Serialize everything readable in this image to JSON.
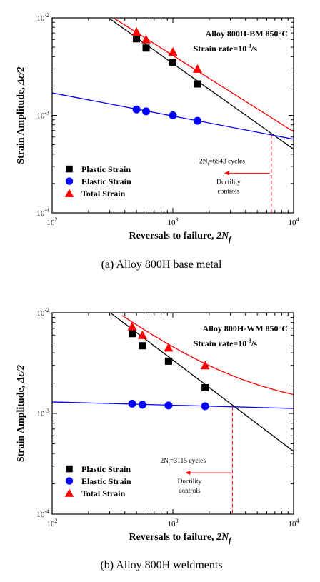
{
  "chart_data": [
    {
      "type": "scatter",
      "xlabel": "Reversals to failure, ",
      "xlabel_var": "2N",
      "xlabel_sub": "f",
      "ylabel": "Strain Amplitude, ",
      "ylabel_var": "Δε/2",
      "xscale": "log",
      "yscale": "log",
      "xlim": [
        100,
        10000
      ],
      "ylim": [
        0.0001,
        0.01
      ],
      "caption": "(a)  Alloy  800H  base  metal",
      "annotation_title": "Alloy 800H-BM 850°C",
      "annotation_rate_prefix": "Strain rate=10",
      "annotation_rate_exp": "-3",
      "annotation_rate_suffix": "/s",
      "cycles_text_prefix": "2N",
      "cycles_text_sub": "t",
      "cycles_text_suffix": "=6543 cycles",
      "ductility_line1": "Ductility",
      "ductility_line2": "controls",
      "transition_x": 6543,
      "legend_position": "lower-left",
      "x_ticks": [
        {
          "value": 100,
          "base": "10",
          "exp": "2"
        },
        {
          "value": 1000,
          "base": "10",
          "exp": "3"
        },
        {
          "value": 10000,
          "base": "10",
          "exp": "4"
        }
      ],
      "y_ticks": [
        {
          "value": 0.0001,
          "base": "10",
          "exp": "-4"
        },
        {
          "value": 0.001,
          "base": "10",
          "exp": "-3"
        },
        {
          "value": 0.01,
          "base": "10",
          "exp": "-2"
        }
      ],
      "series": [
        {
          "name": "Plastic Strain",
          "marker": "square",
          "color": "#000000",
          "x": [
            500,
            600,
            1000,
            1600
          ],
          "y": [
            0.0061,
            0.0049,
            0.0035,
            0.0021
          ],
          "fit": {
            "type": "powerlaw",
            "x": [
              300,
              10000
            ],
            "y": [
              0.0098,
              0.00045
            ]
          }
        },
        {
          "name": "Elastic Strain",
          "marker": "circle",
          "color": "#0000ff",
          "x": [
            500,
            600,
            1000,
            1600
          ],
          "y": [
            0.00115,
            0.0011,
            0.001,
            0.00088
          ],
          "fit": {
            "type": "powerlaw",
            "x": [
              100,
              10000
            ],
            "y": [
              0.0017,
              0.00057
            ]
          }
        },
        {
          "name": "Total Strain",
          "marker": "triangle",
          "color": "#ff0000",
          "x": [
            500,
            600,
            1000,
            1600
          ],
          "y": [
            0.0072,
            0.006,
            0.0045,
            0.003
          ],
          "fit": {
            "type": "powerlaw",
            "x": [
              330,
              10000
            ],
            "y": [
              0.0098,
              0.00068
            ]
          }
        }
      ]
    },
    {
      "type": "scatter",
      "xlabel": "Reversals to failure, ",
      "xlabel_var": "2N",
      "xlabel_sub": "f",
      "ylabel": "Strain Amplitude, ",
      "ylabel_var": "Δε/2",
      "xscale": "log",
      "yscale": "log",
      "xlim": [
        100,
        10000
      ],
      "ylim": [
        0.0001,
        0.01
      ],
      "caption": "(b)  Alloy  800H  weldments",
      "annotation_title": "Alloy 800H-WM 850°C",
      "annotation_rate_prefix": "Strain rate=10",
      "annotation_rate_exp": "-3",
      "annotation_rate_suffix": "/s",
      "cycles_text_prefix": "2N",
      "cycles_text_sub": "t",
      "cycles_text_suffix": "=3115 cycles",
      "ductility_line1": "Ductility",
      "ductility_line2": "controls",
      "transition_x": 3115,
      "legend_position": "lower-left",
      "x_ticks": [
        {
          "value": 100,
          "base": "10",
          "exp": "2"
        },
        {
          "value": 1000,
          "base": "10",
          "exp": "3"
        },
        {
          "value": 10000,
          "base": "10",
          "exp": "4"
        }
      ],
      "y_ticks": [
        {
          "value": 0.0001,
          "base": "10",
          "exp": "-4"
        },
        {
          "value": 0.001,
          "base": "10",
          "exp": "-3"
        },
        {
          "value": 0.01,
          "base": "10",
          "exp": "-2"
        }
      ],
      "series": [
        {
          "name": "Plastic Strain",
          "marker": "square",
          "color": "#000000",
          "x": [
            460,
            560,
            920,
            1850
          ],
          "y": [
            0.0062,
            0.0047,
            0.0033,
            0.0018
          ],
          "fit": {
            "type": "powerlaw",
            "x": [
              310,
              10000
            ],
            "y": [
              0.0098,
              0.00042
            ]
          }
        },
        {
          "name": "Elastic Strain",
          "marker": "circle",
          "color": "#0000ff",
          "x": [
            460,
            560,
            920,
            1850
          ],
          "y": [
            0.00125,
            0.00122,
            0.0012,
            0.00118
          ],
          "fit": {
            "type": "powerlaw",
            "x": [
              100,
              10000
            ],
            "y": [
              0.0013,
              0.00112
            ]
          }
        },
        {
          "name": "Total Strain",
          "marker": "triangle",
          "color": "#ff0000",
          "x": [
            460,
            560,
            920,
            1850
          ],
          "y": [
            0.0073,
            0.006,
            0.0045,
            0.003
          ],
          "fit": {
            "type": "sum",
            "x": [
              380,
              10000
            ]
          }
        }
      ]
    }
  ]
}
